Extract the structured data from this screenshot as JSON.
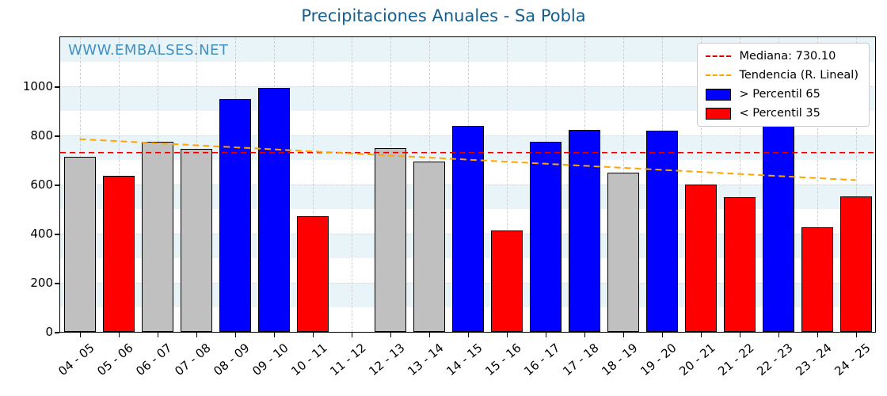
{
  "watermark": "WWW.EMBALSES.NET",
  "legend": {
    "median_label": "Mediana: 730.10",
    "trend_label": "Tendencia (R. Lineal)",
    "high_label": "> Percentil 65",
    "low_label": "< Percentil 35"
  },
  "colors": {
    "high": "#0000ff",
    "low": "#ff0000",
    "mid": "#c0c0c0",
    "median_line": "#e00000",
    "trend_line": "#ffa500",
    "title": "#155e8e",
    "watermark": "#4090c0",
    "band": "#e9f4f8"
  },
  "chart_data": {
    "type": "bar",
    "title": "Precipitaciones Anuales - Sa Pobla",
    "categories": [
      "04 - 05",
      "05 - 06",
      "06 - 07",
      "07 - 08",
      "08 - 09",
      "09 - 10",
      "10 - 11",
      "11 - 12",
      "12 - 13",
      "13 - 14",
      "14 - 15",
      "15 - 16",
      "16 - 17",
      "17 - 18",
      "18 - 19",
      "19 - 20",
      "20 - 21",
      "21 - 22",
      "22 - 23",
      "23 - 24",
      "24 - 25"
    ],
    "values": [
      713,
      635,
      775,
      745,
      950,
      995,
      470,
      null,
      750,
      693,
      840,
      413,
      775,
      823,
      648,
      820,
      600,
      548,
      858,
      425,
      553
    ],
    "bar_classes": [
      "mid",
      "low",
      "mid",
      "mid",
      "high",
      "high",
      "low",
      null,
      "mid",
      "mid",
      "high",
      "low",
      "high",
      "high",
      "mid",
      "high",
      "low",
      "low",
      "high",
      "low",
      "low"
    ],
    "median": 730.1,
    "trend": {
      "start": 785,
      "end": 618
    },
    "ylim": [
      0,
      1200
    ],
    "yticks": [
      0,
      200,
      400,
      600,
      800,
      1000
    ],
    "grid": true,
    "legend_position": "upper right",
    "xlabel": "",
    "ylabel": ""
  }
}
